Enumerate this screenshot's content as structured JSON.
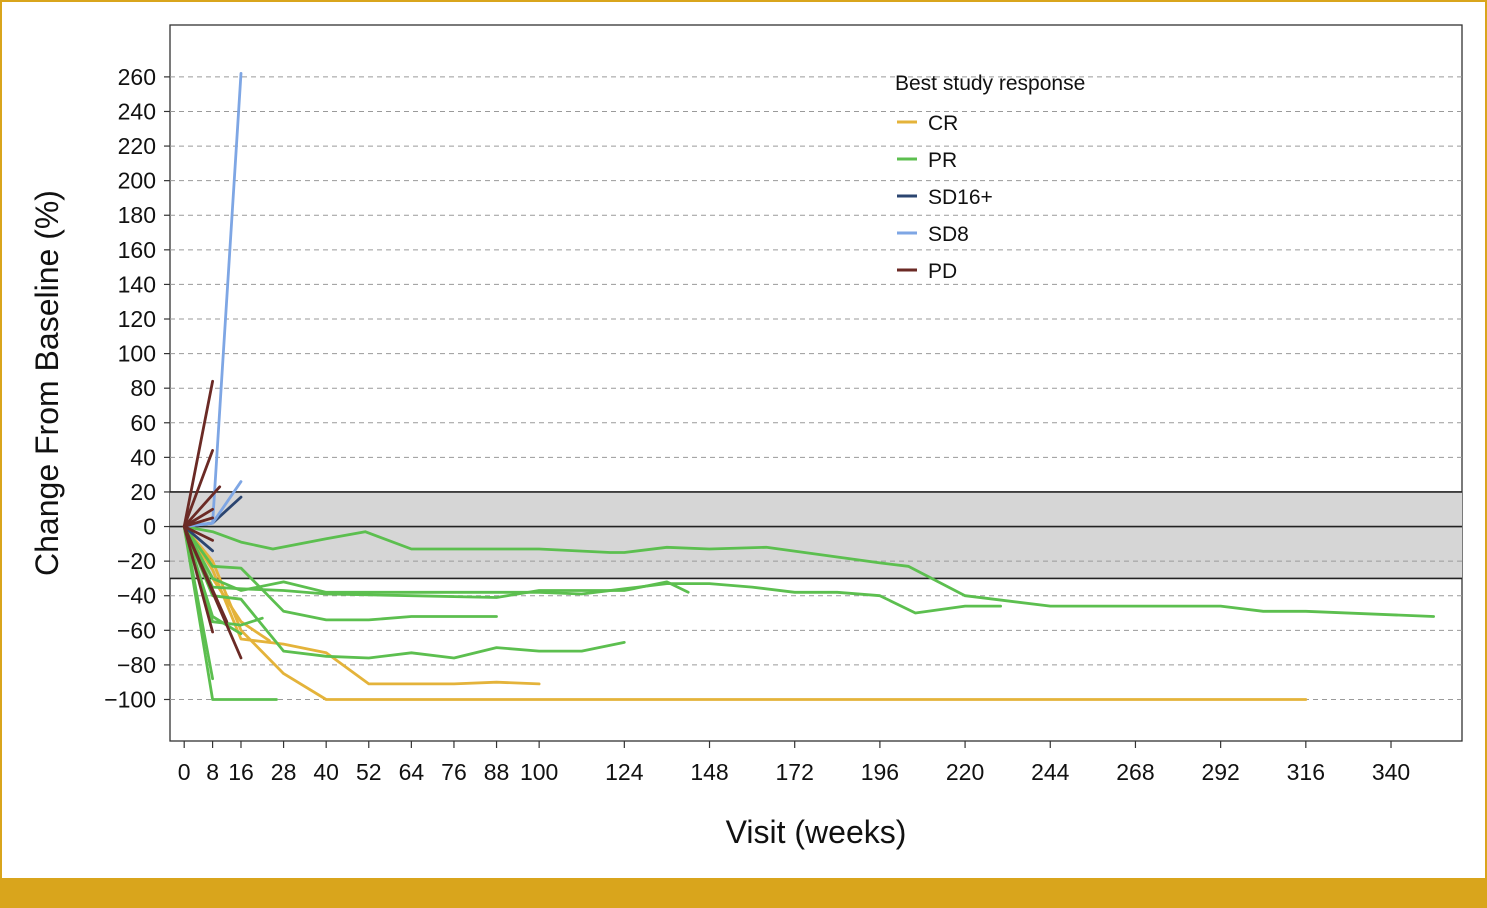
{
  "chart_data": {
    "type": "line",
    "xlabel": "Visit (weeks)",
    "ylabel": "Change From Baseline (%)",
    "xticks": [
      0,
      8,
      16,
      28,
      40,
      52,
      64,
      76,
      88,
      100,
      124,
      148,
      172,
      196,
      220,
      244,
      268,
      292,
      316,
      340
    ],
    "yticks": [
      260,
      240,
      220,
      200,
      180,
      160,
      140,
      120,
      100,
      80,
      60,
      40,
      20,
      0,
      -20,
      -40,
      -60,
      -80,
      -100
    ],
    "xlim": [
      -4,
      360
    ],
    "ylim": [
      -124,
      290
    ],
    "grid": "horizontal-dashed",
    "shaded_band": {
      "y_from": -30,
      "y_to": 20
    },
    "legend": {
      "title": "Best study response",
      "position": "top-right",
      "entries": [
        {
          "name": "CR",
          "color": "#e4b33a"
        },
        {
          "name": "PR",
          "color": "#5cbf4f"
        },
        {
          "name": "SD16+",
          "color": "#2b4570"
        },
        {
          "name": "SD8",
          "color": "#7ea6e4"
        },
        {
          "name": "PD",
          "color": "#6b2a25"
        }
      ]
    },
    "series": [
      {
        "group": "CR",
        "points": [
          [
            0,
            0
          ],
          [
            8,
            -20
          ],
          [
            16,
            -60
          ],
          [
            28,
            -85
          ],
          [
            40,
            -100
          ],
          [
            316,
            -100
          ]
        ]
      },
      {
        "group": "CR",
        "points": [
          [
            0,
            0
          ],
          [
            8,
            -25
          ],
          [
            16,
            -65
          ],
          [
            28,
            -68
          ],
          [
            40,
            -73
          ],
          [
            52,
            -91
          ],
          [
            64,
            -91
          ],
          [
            76,
            -91
          ],
          [
            88,
            -90
          ],
          [
            100,
            -91
          ]
        ]
      },
      {
        "group": "CR",
        "points": [
          [
            0,
            0
          ],
          [
            8,
            -30
          ],
          [
            16,
            -55
          ],
          [
            24,
            -66
          ]
        ]
      },
      {
        "group": "PR",
        "points": [
          [
            0,
            0
          ],
          [
            8,
            -3
          ],
          [
            16,
            -9
          ],
          [
            25,
            -13
          ],
          [
            40,
            -7
          ],
          [
            51,
            -3
          ],
          [
            64,
            -13
          ],
          [
            100,
            -13
          ],
          [
            120,
            -15
          ],
          [
            124,
            -15
          ],
          [
            136,
            -12
          ],
          [
            148,
            -13
          ],
          [
            164,
            -12
          ],
          [
            196,
            -21
          ],
          [
            204,
            -23
          ],
          [
            220,
            -40
          ],
          [
            244,
            -46
          ],
          [
            292,
            -46
          ],
          [
            304,
            -49
          ],
          [
            316,
            -49
          ],
          [
            352,
            -52
          ]
        ]
      },
      {
        "group": "PR",
        "points": [
          [
            0,
            0
          ],
          [
            8,
            -23
          ],
          [
            16,
            -24
          ],
          [
            28,
            -49
          ],
          [
            40,
            -54
          ],
          [
            52,
            -54
          ],
          [
            64,
            -52
          ],
          [
            88,
            -52
          ]
        ]
      },
      {
        "group": "PR",
        "points": [
          [
            0,
            0
          ],
          [
            8,
            -30
          ],
          [
            16,
            -37
          ],
          [
            28,
            -32
          ],
          [
            40,
            -38
          ],
          [
            52,
            -38
          ],
          [
            64,
            -38
          ],
          [
            88,
            -38
          ],
          [
            100,
            -38
          ],
          [
            112,
            -39
          ],
          [
            124,
            -36
          ],
          [
            136,
            -33
          ],
          [
            148,
            -33
          ],
          [
            160,
            -35
          ],
          [
            172,
            -38
          ],
          [
            184,
            -38
          ],
          [
            196,
            -40
          ],
          [
            206,
            -50
          ],
          [
            220,
            -46
          ],
          [
            230,
            -46
          ]
        ]
      },
      {
        "group": "PR",
        "points": [
          [
            0,
            0
          ],
          [
            8,
            -35
          ],
          [
            16,
            -36
          ],
          [
            28,
            -37
          ],
          [
            40,
            -39
          ],
          [
            64,
            -40
          ],
          [
            88,
            -41
          ],
          [
            100,
            -37
          ],
          [
            124,
            -37
          ],
          [
            136,
            -32
          ],
          [
            142,
            -38
          ]
        ]
      },
      {
        "group": "PR",
        "points": [
          [
            0,
            0
          ],
          [
            8,
            -40
          ],
          [
            16,
            -42
          ],
          [
            28,
            -72
          ],
          [
            40,
            -75
          ],
          [
            52,
            -76
          ],
          [
            64,
            -73
          ],
          [
            76,
            -76
          ],
          [
            88,
            -70
          ],
          [
            100,
            -72
          ],
          [
            112,
            -72
          ],
          [
            124,
            -67
          ]
        ]
      },
      {
        "group": "PR",
        "points": [
          [
            0,
            0
          ],
          [
            8,
            -55
          ],
          [
            16,
            -57
          ],
          [
            22,
            -53
          ]
        ]
      },
      {
        "group": "PR",
        "points": [
          [
            0,
            0
          ],
          [
            8,
            -100
          ],
          [
            26,
            -100
          ]
        ]
      },
      {
        "group": "PR",
        "points": [
          [
            0,
            0
          ],
          [
            8,
            -88
          ]
        ]
      },
      {
        "group": "PR",
        "points": [
          [
            0,
            0
          ],
          [
            8,
            -52
          ],
          [
            16,
            -62
          ]
        ]
      },
      {
        "group": "SD16+",
        "points": [
          [
            0,
            0
          ],
          [
            8,
            2
          ],
          [
            16,
            17
          ]
        ]
      },
      {
        "group": "SD16+",
        "points": [
          [
            0,
            0
          ],
          [
            8,
            -14
          ]
        ]
      },
      {
        "group": "SD8",
        "points": [
          [
            0,
            0
          ],
          [
            8,
            2
          ],
          [
            16,
            262
          ]
        ]
      },
      {
        "group": "SD8",
        "points": [
          [
            0,
            0
          ],
          [
            8,
            2
          ],
          [
            16,
            26
          ]
        ]
      },
      {
        "group": "PD",
        "points": [
          [
            0,
            0
          ],
          [
            8,
            84
          ]
        ]
      },
      {
        "group": "PD",
        "points": [
          [
            0,
            0
          ],
          [
            8,
            44
          ]
        ]
      },
      {
        "group": "PD",
        "points": [
          [
            0,
            0
          ],
          [
            10,
            23
          ]
        ]
      },
      {
        "group": "PD",
        "points": [
          [
            0,
            0
          ],
          [
            8,
            10
          ]
        ]
      },
      {
        "group": "PD",
        "points": [
          [
            0,
            0
          ],
          [
            8,
            5
          ]
        ]
      },
      {
        "group": "PD",
        "points": [
          [
            0,
            0
          ],
          [
            8,
            -8
          ]
        ]
      },
      {
        "group": "PD",
        "points": [
          [
            0,
            0
          ],
          [
            16,
            -76
          ]
        ]
      },
      {
        "group": "PD",
        "points": [
          [
            0,
            0
          ],
          [
            8,
            -61
          ]
        ]
      },
      {
        "group": "PD",
        "points": [
          [
            0,
            0
          ],
          [
            12,
            -55
          ]
        ]
      }
    ]
  }
}
